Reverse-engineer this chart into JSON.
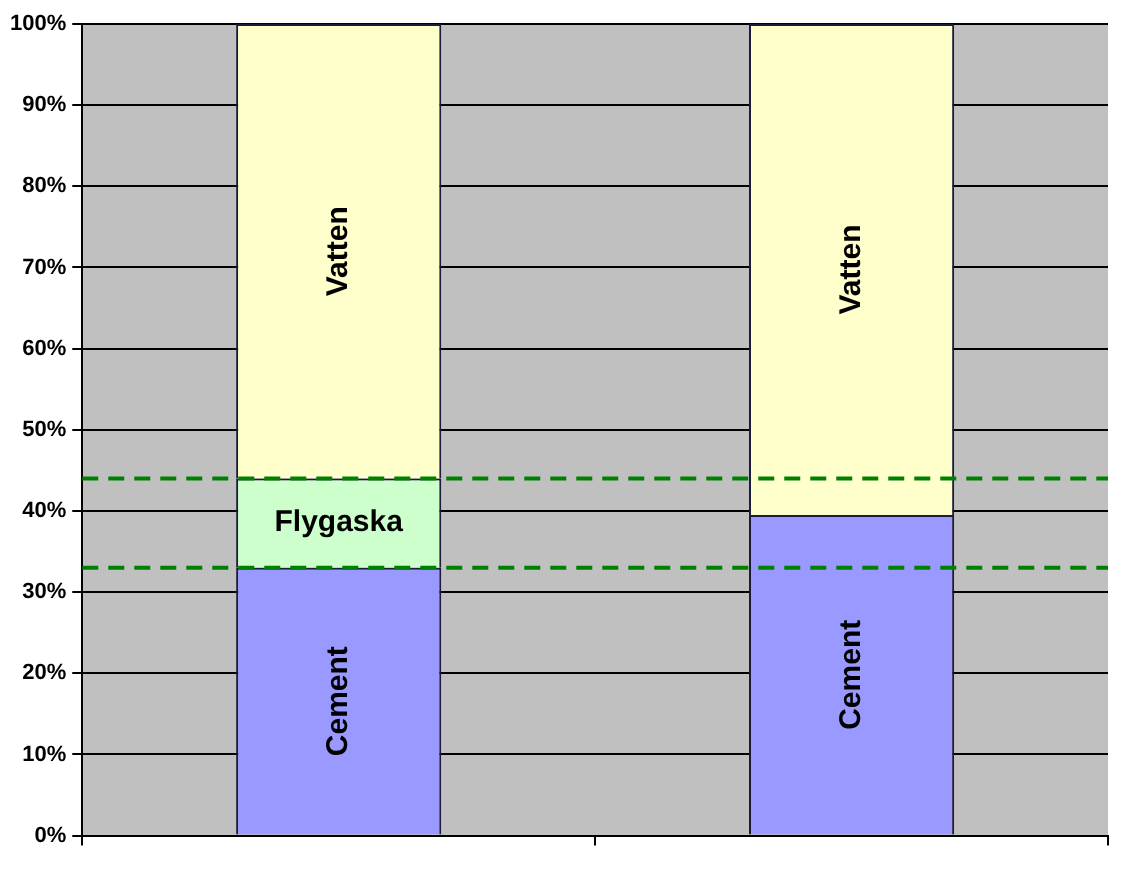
{
  "chart_data": {
    "type": "bar",
    "stacked": true,
    "categories": [
      null,
      null
    ],
    "series": [
      {
        "name": "Cement",
        "color": "#9999ff",
        "values": [
          33,
          39.5
        ]
      },
      {
        "name": "Flygaska",
        "color": "#ccffcc",
        "values": [
          11,
          0
        ]
      },
      {
        "name": "Vatten",
        "color": "#ffffcc",
        "values": [
          56,
          60.5
        ]
      }
    ],
    "ylim": [
      0,
      100
    ],
    "yticks": [
      {
        "value": 0,
        "label": "0%"
      },
      {
        "value": 10,
        "label": "10%"
      },
      {
        "value": 20,
        "label": "20%"
      },
      {
        "value": 30,
        "label": "30%"
      },
      {
        "value": 40,
        "label": "40%"
      },
      {
        "value": 50,
        "label": "50%"
      },
      {
        "value": 60,
        "label": "60%"
      },
      {
        "value": 70,
        "label": "70%"
      },
      {
        "value": 80,
        "label": "80%"
      },
      {
        "value": 90,
        "label": "90%"
      },
      {
        "value": 100,
        "label": "100%"
      }
    ],
    "grid": "y",
    "legend": false,
    "ref_lines": [
      {
        "axis": "y",
        "value": 44,
        "color": "#008000",
        "line_style": "dashed"
      },
      {
        "axis": "y",
        "value": 33,
        "color": "#008000",
        "line_style": "dashed"
      }
    ]
  }
}
